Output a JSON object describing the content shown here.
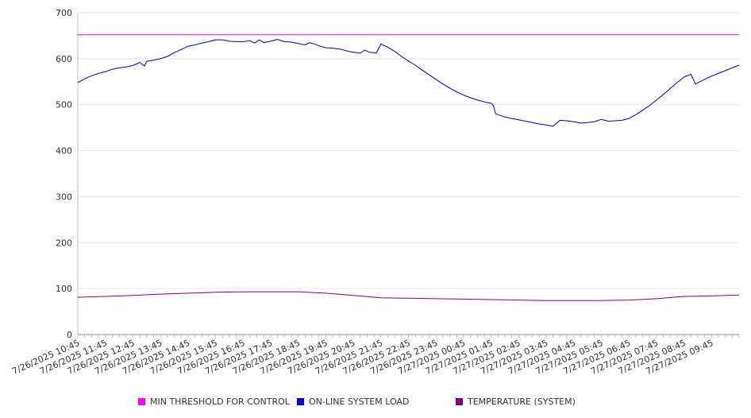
{
  "chart_data": {
    "type": "line",
    "ylim": [
      0,
      700
    ],
    "yticks": [
      0,
      100,
      200,
      300,
      400,
      500,
      600,
      700
    ],
    "xlabel": "",
    "ylabel": "",
    "grid": true,
    "legend_position": "bottom",
    "x_tick_labels": [
      "7/26/2025 10:45",
      "7/26/2025 11:45",
      "7/26/2025 12:45",
      "7/26/2025 13:45",
      "7/26/2025 14:45",
      "7/26/2025 15:45",
      "7/26/2025 16:45",
      "7/26/2025 17:45",
      "7/26/2025 18:45",
      "7/26/2025 19:45",
      "7/26/2025 20:45",
      "7/26/2025 21:45",
      "7/26/2025 22:45",
      "7/26/2025 23:45",
      "7/27/2025 00:45",
      "7/27/2025 01:45",
      "7/27/2025 02:45",
      "7/27/2025 03:45",
      "7/27/2025 04:45",
      "7/27/2025 05:45",
      "7/27/2025 06:45",
      "7/27/2025 07:45",
      "7/27/2025 08:45",
      "7/27/2025 09:45"
    ],
    "x_start": "7/26/2025 10:45",
    "x_end": "7/27/2025 10:45",
    "series": [
      {
        "name": "MIN THRESHOLD FOR CONTROL",
        "color": "#ff00ff",
        "points": [
          [
            "7/26/2025 10:45",
            652
          ],
          [
            "7/27/2025 10:45",
            652
          ]
        ]
      },
      {
        "name": "ON-LINE SYSTEM LOAD",
        "color": "#0000cc",
        "points": [
          [
            "7/26/2025 10:45",
            548
          ],
          [
            "7/26/2025 11:00",
            556
          ],
          [
            "7/26/2025 11:15",
            563
          ],
          [
            "7/26/2025 11:30",
            568
          ],
          [
            "7/26/2025 11:45",
            572
          ],
          [
            "7/26/2025 12:00",
            577
          ],
          [
            "7/26/2025 12:15",
            580
          ],
          [
            "7/26/2025 12:30",
            582
          ],
          [
            "7/26/2025 12:45",
            585
          ],
          [
            "7/26/2025 13:00",
            592
          ],
          [
            "7/26/2025 13:10",
            584
          ],
          [
            "7/26/2025 13:15",
            594
          ],
          [
            "7/26/2025 13:30",
            597
          ],
          [
            "7/26/2025 13:45",
            600
          ],
          [
            "7/26/2025 14:00",
            605
          ],
          [
            "7/26/2025 14:15",
            613
          ],
          [
            "7/26/2025 14:30",
            620
          ],
          [
            "7/26/2025 14:45",
            627
          ],
          [
            "7/26/2025 15:00",
            630
          ],
          [
            "7/26/2025 15:15",
            634
          ],
          [
            "7/26/2025 15:30",
            637
          ],
          [
            "7/26/2025 15:45",
            641
          ],
          [
            "7/26/2025 16:00",
            641
          ],
          [
            "7/26/2025 16:15",
            638
          ],
          [
            "7/26/2025 16:30",
            637
          ],
          [
            "7/26/2025 16:45",
            637
          ],
          [
            "7/26/2025 17:00",
            639
          ],
          [
            "7/26/2025 17:10",
            634
          ],
          [
            "7/26/2025 17:20",
            641
          ],
          [
            "7/26/2025 17:30",
            635
          ],
          [
            "7/26/2025 17:45",
            638
          ],
          [
            "7/26/2025 18:00",
            642
          ],
          [
            "7/26/2025 18:15",
            637
          ],
          [
            "7/26/2025 18:30",
            636
          ],
          [
            "7/26/2025 18:45",
            633
          ],
          [
            "7/26/2025 19:00",
            630
          ],
          [
            "7/26/2025 19:10",
            635
          ],
          [
            "7/26/2025 19:20",
            632
          ],
          [
            "7/26/2025 19:30",
            628
          ],
          [
            "7/26/2025 19:45",
            624
          ],
          [
            "7/26/2025 20:00",
            623
          ],
          [
            "7/26/2025 20:15",
            621
          ],
          [
            "7/26/2025 20:30",
            617
          ],
          [
            "7/26/2025 20:45",
            614
          ],
          [
            "7/26/2025 21:00",
            612
          ],
          [
            "7/26/2025 21:10",
            619
          ],
          [
            "7/26/2025 21:20",
            614
          ],
          [
            "7/26/2025 21:35",
            612
          ],
          [
            "7/26/2025 21:45",
            632
          ],
          [
            "7/26/2025 22:00",
            625
          ],
          [
            "7/26/2025 22:15",
            616
          ],
          [
            "7/26/2025 22:30",
            605
          ],
          [
            "7/26/2025 22:45",
            595
          ],
          [
            "7/26/2025 23:00",
            586
          ],
          [
            "7/26/2025 23:15",
            575
          ],
          [
            "7/26/2025 23:30",
            565
          ],
          [
            "7/26/2025 23:45",
            555
          ],
          [
            "7/27/2025 00:00",
            545
          ],
          [
            "7/27/2025 00:15",
            536
          ],
          [
            "7/27/2025 00:30",
            528
          ],
          [
            "7/27/2025 00:45",
            521
          ],
          [
            "7/27/2025 01:00",
            515
          ],
          [
            "7/27/2025 01:15",
            510
          ],
          [
            "7/27/2025 01:30",
            506
          ],
          [
            "7/27/2025 01:45",
            503
          ],
          [
            "7/27/2025 01:50",
            498
          ],
          [
            "7/27/2025 01:55",
            480
          ],
          [
            "7/27/2025 02:15",
            473
          ],
          [
            "7/27/2025 02:30",
            470
          ],
          [
            "7/27/2025 02:45",
            467
          ],
          [
            "7/27/2025 03:00",
            464
          ],
          [
            "7/27/2025 03:15",
            461
          ],
          [
            "7/27/2025 03:30",
            458
          ],
          [
            "7/27/2025 03:45",
            456
          ],
          [
            "7/27/2025 04:00",
            453
          ],
          [
            "7/27/2025 04:15",
            466
          ],
          [
            "7/27/2025 04:30",
            465
          ],
          [
            "7/27/2025 04:45",
            463
          ],
          [
            "7/27/2025 05:00",
            460
          ],
          [
            "7/27/2025 05:15",
            461
          ],
          [
            "7/27/2025 05:30",
            463
          ],
          [
            "7/27/2025 05:45",
            468
          ],
          [
            "7/27/2025 06:00",
            464
          ],
          [
            "7/27/2025 06:15",
            465
          ],
          [
            "7/27/2025 06:30",
            466
          ],
          [
            "7/27/2025 06:45",
            470
          ],
          [
            "7/27/2025 07:00",
            478
          ],
          [
            "7/27/2025 07:15",
            488
          ],
          [
            "7/27/2025 07:30",
            498
          ],
          [
            "7/27/2025 07:45",
            510
          ],
          [
            "7/27/2025 08:00",
            522
          ],
          [
            "7/27/2025 08:15",
            535
          ],
          [
            "7/27/2025 08:30",
            548
          ],
          [
            "7/27/2025 08:45",
            560
          ],
          [
            "7/27/2025 09:00",
            566
          ],
          [
            "7/27/2025 09:10",
            545
          ],
          [
            "7/27/2025 09:30",
            555
          ],
          [
            "7/27/2025 09:45",
            562
          ],
          [
            "7/27/2025 10:00",
            568
          ],
          [
            "7/27/2025 10:15",
            574
          ],
          [
            "7/27/2025 10:30",
            580
          ],
          [
            "7/27/2025 10:45",
            586
          ]
        ]
      },
      {
        "name": "TEMPERATURE (SYSTEM)",
        "color": "#800080",
        "points": [
          [
            "7/26/2025 10:45",
            81
          ],
          [
            "7/26/2025 11:45",
            83
          ],
          [
            "7/26/2025 12:45",
            85
          ],
          [
            "7/26/2025 13:45",
            88
          ],
          [
            "7/26/2025 14:45",
            90
          ],
          [
            "7/26/2025 15:45",
            92
          ],
          [
            "7/26/2025 16:45",
            93
          ],
          [
            "7/26/2025 17:45",
            93
          ],
          [
            "7/26/2025 18:45",
            93
          ],
          [
            "7/26/2025 19:45",
            90
          ],
          [
            "7/26/2025 20:45",
            85
          ],
          [
            "7/26/2025 21:45",
            80
          ],
          [
            "7/26/2025 22:45",
            79
          ],
          [
            "7/26/2025 23:45",
            78
          ],
          [
            "7/27/2025 00:45",
            77
          ],
          [
            "7/27/2025 01:45",
            76
          ],
          [
            "7/27/2025 02:45",
            75
          ],
          [
            "7/27/2025 03:45",
            74
          ],
          [
            "7/27/2025 04:45",
            74
          ],
          [
            "7/27/2025 05:45",
            74
          ],
          [
            "7/27/2025 06:45",
            75
          ],
          [
            "7/27/2025 07:45",
            78
          ],
          [
            "7/27/2025 08:45",
            83
          ],
          [
            "7/27/2025 09:45",
            84
          ],
          [
            "7/27/2025 10:45",
            86
          ]
        ]
      }
    ]
  }
}
